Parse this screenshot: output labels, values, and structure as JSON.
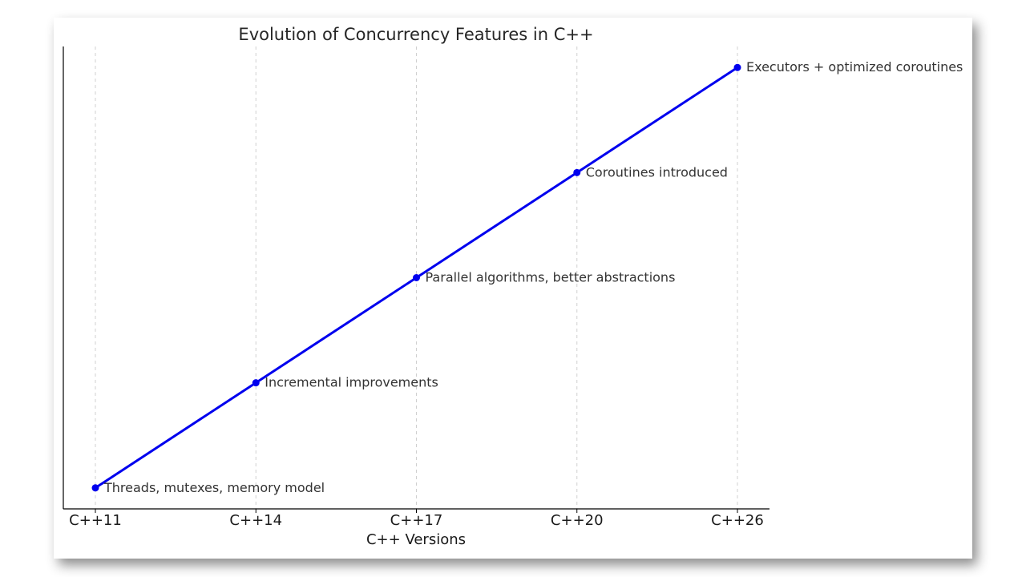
{
  "chart_data": {
    "type": "line",
    "title": "Evolution of Concurrency Features in C++",
    "xlabel": "C++ Versions",
    "ylabel": "",
    "categories": [
      "C++11",
      "C++14",
      "C++17",
      "C++20",
      "C++26"
    ],
    "series": [
      {
        "values": [
          1,
          2,
          3,
          4,
          5
        ],
        "color": "#0000ee"
      }
    ],
    "annotations": [
      "Threads, mutexes, memory model",
      "Incremental improvements",
      "Parallel algorithms, better abstractions",
      "Coroutines introduced",
      "Executors + optimized coroutines"
    ],
    "y_tick_labels_shown": false,
    "grid": "vertical dashed",
    "legend": "none",
    "colors": {
      "line": "#0000ee",
      "grid": "#d0d0d0",
      "axis": "#000000"
    }
  }
}
